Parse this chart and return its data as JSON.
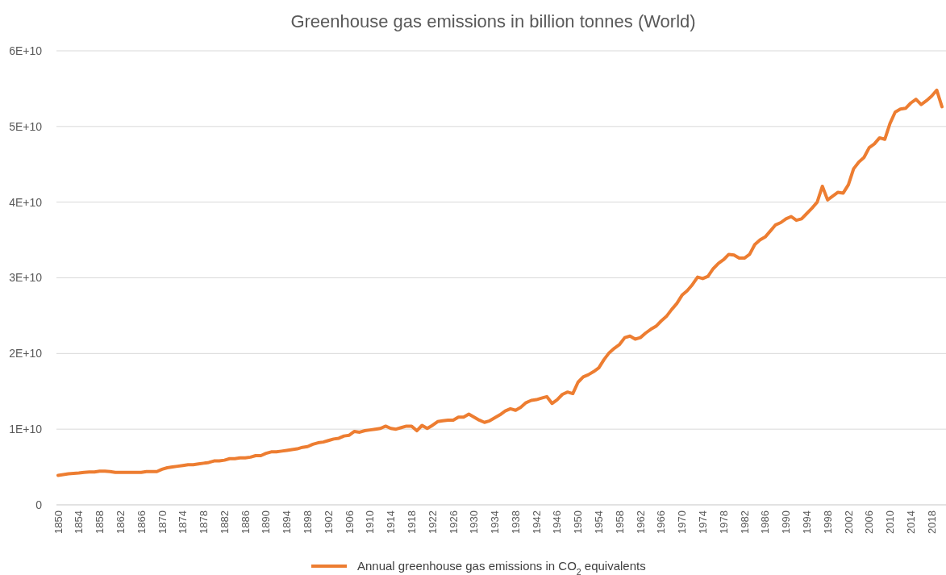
{
  "chart_data": {
    "type": "line",
    "title": "Greenhouse gas emissions in billion tonnes (World)",
    "categories": [
      "1850",
      null,
      null,
      null,
      "1854",
      null,
      null,
      null,
      "1858",
      null,
      null,
      null,
      "1862",
      null,
      null,
      null,
      "1866",
      null,
      null,
      null,
      "1870",
      null,
      null,
      null,
      "1874",
      null,
      null,
      null,
      "1878",
      null,
      null,
      null,
      "1882",
      null,
      null,
      null,
      "1886",
      null,
      null,
      null,
      "1890",
      null,
      null,
      null,
      "1894",
      null,
      null,
      null,
      "1898",
      null,
      null,
      null,
      "1902",
      null,
      null,
      null,
      "1906",
      null,
      null,
      null,
      "1910",
      null,
      null,
      null,
      "1914",
      null,
      null,
      null,
      "1918",
      null,
      null,
      null,
      "1922",
      null,
      null,
      null,
      "1926",
      null,
      null,
      null,
      "1930",
      null,
      null,
      null,
      "1934",
      null,
      null,
      null,
      "1938",
      null,
      null,
      null,
      "1942",
      null,
      null,
      null,
      "1946",
      null,
      null,
      null,
      "1950",
      null,
      null,
      null,
      "1954",
      null,
      null,
      null,
      "1958",
      null,
      null,
      null,
      "1962",
      null,
      null,
      null,
      "1966",
      null,
      null,
      null,
      "1970",
      null,
      null,
      null,
      "1974",
      null,
      null,
      null,
      "1978",
      null,
      null,
      null,
      "1982",
      null,
      null,
      null,
      "1986",
      null,
      null,
      null,
      "1990",
      null,
      null,
      null,
      "1994",
      null,
      null,
      null,
      "1998",
      null,
      null,
      null,
      "2002",
      null,
      null,
      null,
      "2006",
      null,
      null,
      null,
      "2010",
      null,
      null,
      null,
      "2014",
      null,
      null,
      null,
      "2018",
      null,
      null
    ],
    "series": [
      {
        "name": "Annual greenhouse gas emissions in CO$_{2}$ equivalents",
        "color": "#ed7d31",
        "values": [
          3900000000.0,
          4000000000.0,
          4100000000.0,
          4150000000.0,
          4200000000.0,
          4300000000.0,
          4350000000.0,
          4350000000.0,
          4450000000.0,
          4450000000.0,
          4400000000.0,
          4300000000.0,
          4300000000.0,
          4300000000.0,
          4300000000.0,
          4300000000.0,
          4300000000.0,
          4400000000.0,
          4400000000.0,
          4400000000.0,
          4700000000.0,
          4900000000.0,
          5000000000.0,
          5100000000.0,
          5200000000.0,
          5300000000.0,
          5300000000.0,
          5400000000.0,
          5500000000.0,
          5600000000.0,
          5800000000.0,
          5800000000.0,
          5900000000.0,
          6100000000.0,
          6100000000.0,
          6200000000.0,
          6200000000.0,
          6300000000.0,
          6500000000.0,
          6500000000.0,
          6800000000.0,
          7000000000.0,
          7000000000.0,
          7100000000.0,
          7200000000.0,
          7300000000.0,
          7400000000.0,
          7600000000.0,
          7700000000.0,
          8000000000.0,
          8200000000.0,
          8300000000.0,
          8500000000.0,
          8700000000.0,
          8800000000.0,
          9100000000.0,
          9200000000.0,
          9700000000.0,
          9600000000.0,
          9800000000.0,
          9900000000.0,
          10000000000.0,
          10100000000.0,
          10400000000.0,
          10100000000.0,
          10000000000.0,
          10200000000.0,
          10400000000.0,
          10400000000.0,
          9800000000.0,
          10500000000.0,
          10100000000.0,
          10500000000.0,
          11000000000.0,
          11100000000.0,
          11200000000.0,
          11200000000.0,
          11600000000.0,
          11600000000.0,
          12000000000.0,
          11600000000.0,
          11200000000.0,
          10900000000.0,
          11100000000.0,
          11500000000.0,
          11900000000.0,
          12400000000.0,
          12700000000.0,
          12500000000.0,
          12900000000.0,
          13500000000.0,
          13800000000.0,
          13900000000.0,
          14100000000.0,
          14300000000.0,
          13400000000.0,
          13900000000.0,
          14600000000.0,
          14900000000.0,
          14700000000.0,
          16200000000.0,
          16900000000.0,
          17200000000.0,
          17600000000.0,
          18100000000.0,
          19200000000.0,
          20100000000.0,
          20700000000.0,
          21200000000.0,
          22100000000.0,
          22300000000.0,
          21900000000.0,
          22100000000.0,
          22700000000.0,
          23200000000.0,
          23600000000.0,
          24300000000.0,
          24900000000.0,
          25800000000.0,
          26600000000.0,
          27700000000.0,
          28300000000.0,
          29100000000.0,
          30100000000.0,
          29900000000.0,
          30200000000.0,
          31200000000.0,
          31900000000.0,
          32400000000.0,
          33100000000.0,
          33000000000.0,
          32600000000.0,
          32600000000.0,
          33100000000.0,
          34400000000.0,
          35000000000.0,
          35400000000.0,
          36200000000.0,
          37000000000.0,
          37300000000.0,
          37800000000.0,
          38100000000.0,
          37600000000.0,
          37800000000.0,
          38500000000.0,
          39200000000.0,
          40000000000.0,
          42100000000.0,
          40300000000.0,
          40800000000.0,
          41300000000.0,
          41200000000.0,
          42300000000.0,
          44400000000.0,
          45300000000.0,
          45900000000.0,
          47200000000.0,
          47700000000.0,
          48500000000.0,
          48300000000.0,
          50400000000.0,
          51900000000.0,
          52300000000.0,
          52400000000.0,
          53100000000.0,
          53600000000.0,
          52900000000.0,
          53400000000.0,
          54000000000.0,
          54800000000.0,
          52600000000.0
        ]
      }
    ],
    "ylim": [
      0,
      60000000000.0
    ],
    "yticks": [
      0,
      {
        "value": 10000000000.0,
        "label": "1E+10"
      },
      {
        "value": 20000000000.0,
        "label": "2E+10"
      },
      {
        "value": 30000000000.0,
        "label": "3E+10"
      },
      {
        "value": 40000000000.0,
        "label": "4E+10"
      },
      {
        "value": 50000000000.0,
        "label": "5E+10"
      },
      {
        "value": 60000000000.0,
        "label": "6E+10"
      }
    ],
    "grid": "y",
    "legend": "bottom",
    "marker": "none",
    "line_style": "solid"
  }
}
